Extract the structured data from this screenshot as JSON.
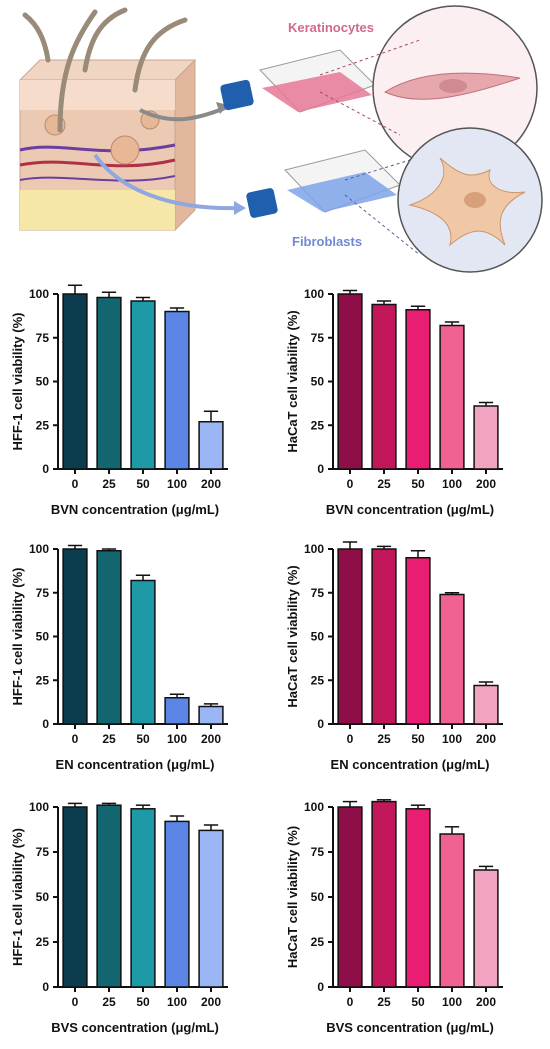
{
  "illustration": {
    "label_top": "Keratinocytes",
    "label_bottom": "Fibroblasts",
    "colors": {
      "keratinocytes": "#d9728f",
      "fibroblasts": "#7d93d6",
      "skin": "#e8c7b0"
    }
  },
  "chart_data": [
    {
      "id": "hff_bvn",
      "type": "bar",
      "categories": [
        "0",
        "25",
        "50",
        "100",
        "200"
      ],
      "values": [
        100,
        98,
        96,
        90,
        27
      ],
      "errors": [
        5,
        3,
        2,
        2,
        6
      ],
      "ylabel": "HFF-1 cell viability (%)",
      "xlabel": "BVN concentration (μg/mL)",
      "ylim": [
        0,
        100
      ],
      "yticks": [
        0,
        25,
        50,
        75,
        100
      ],
      "colors": [
        "#0b3d4e",
        "#13666f",
        "#1d9aa6",
        "#5b86e6",
        "#9bb6f5"
      ]
    },
    {
      "id": "hacat_bvn",
      "type": "bar",
      "categories": [
        "0",
        "25",
        "50",
        "100",
        "200"
      ],
      "values": [
        100,
        94,
        91,
        82,
        36
      ],
      "errors": [
        2,
        2,
        2,
        2,
        2
      ],
      "ylabel": "HaCaT cell viability (%)",
      "xlabel": "BVN concentration (μg/mL)",
      "ylim": [
        0,
        100
      ],
      "yticks": [
        0,
        25,
        50,
        75,
        100
      ],
      "colors": [
        "#8e0e47",
        "#c2185b",
        "#e91e73",
        "#f06292",
        "#f3a3c2"
      ]
    },
    {
      "id": "hff_en",
      "type": "bar",
      "categories": [
        "0",
        "25",
        "50",
        "100",
        "200"
      ],
      "values": [
        100,
        99,
        82,
        15,
        10
      ],
      "errors": [
        2,
        1,
        3,
        2,
        1.5
      ],
      "ylabel": "HFF-1 cell viability (%)",
      "xlabel": "EN concentration (μg/mL)",
      "ylim": [
        0,
        100
      ],
      "yticks": [
        0,
        25,
        50,
        75,
        100
      ],
      "colors": [
        "#0b3d4e",
        "#13666f",
        "#1d9aa6",
        "#5b86e6",
        "#9bb6f5"
      ]
    },
    {
      "id": "hacat_en",
      "type": "bar",
      "categories": [
        "0",
        "25",
        "50",
        "100",
        "200"
      ],
      "values": [
        100,
        100,
        95,
        74,
        22
      ],
      "errors": [
        4,
        1.5,
        4,
        1,
        2
      ],
      "ylabel": "HaCaT cell viability (%)",
      "xlabel": "EN concentration (μg/mL)",
      "ylim": [
        0,
        100
      ],
      "yticks": [
        0,
        25,
        50,
        75,
        100
      ],
      "colors": [
        "#8e0e47",
        "#c2185b",
        "#e91e73",
        "#f06292",
        "#f3a3c2"
      ]
    },
    {
      "id": "hff_bvs",
      "type": "bar",
      "categories": [
        "0",
        "25",
        "50",
        "100",
        "200"
      ],
      "values": [
        100,
        101,
        99,
        92,
        87
      ],
      "errors": [
        2,
        1,
        2,
        3,
        3
      ],
      "ylabel": "HFF-1 cell viability (%)",
      "xlabel": "BVS concentration (μg/mL)",
      "ylim": [
        0,
        100
      ],
      "yticks": [
        0,
        25,
        50,
        75,
        100
      ],
      "colors": [
        "#0b3d4e",
        "#13666f",
        "#1d9aa6",
        "#5b86e6",
        "#9bb6f5"
      ]
    },
    {
      "id": "hacat_bvs",
      "type": "bar",
      "categories": [
        "0",
        "25",
        "50",
        "100",
        "200"
      ],
      "values": [
        100,
        103,
        99,
        85,
        65
      ],
      "errors": [
        3,
        1,
        2,
        4,
        2
      ],
      "ylabel": "HaCaT cell viability (%)",
      "xlabel": "BVS concentration (μg/mL)",
      "ylim": [
        0,
        100
      ],
      "yticks": [
        0,
        25,
        50,
        75,
        100
      ],
      "colors": [
        "#8e0e47",
        "#c2185b",
        "#e91e73",
        "#f06292",
        "#f3a3c2"
      ]
    }
  ]
}
